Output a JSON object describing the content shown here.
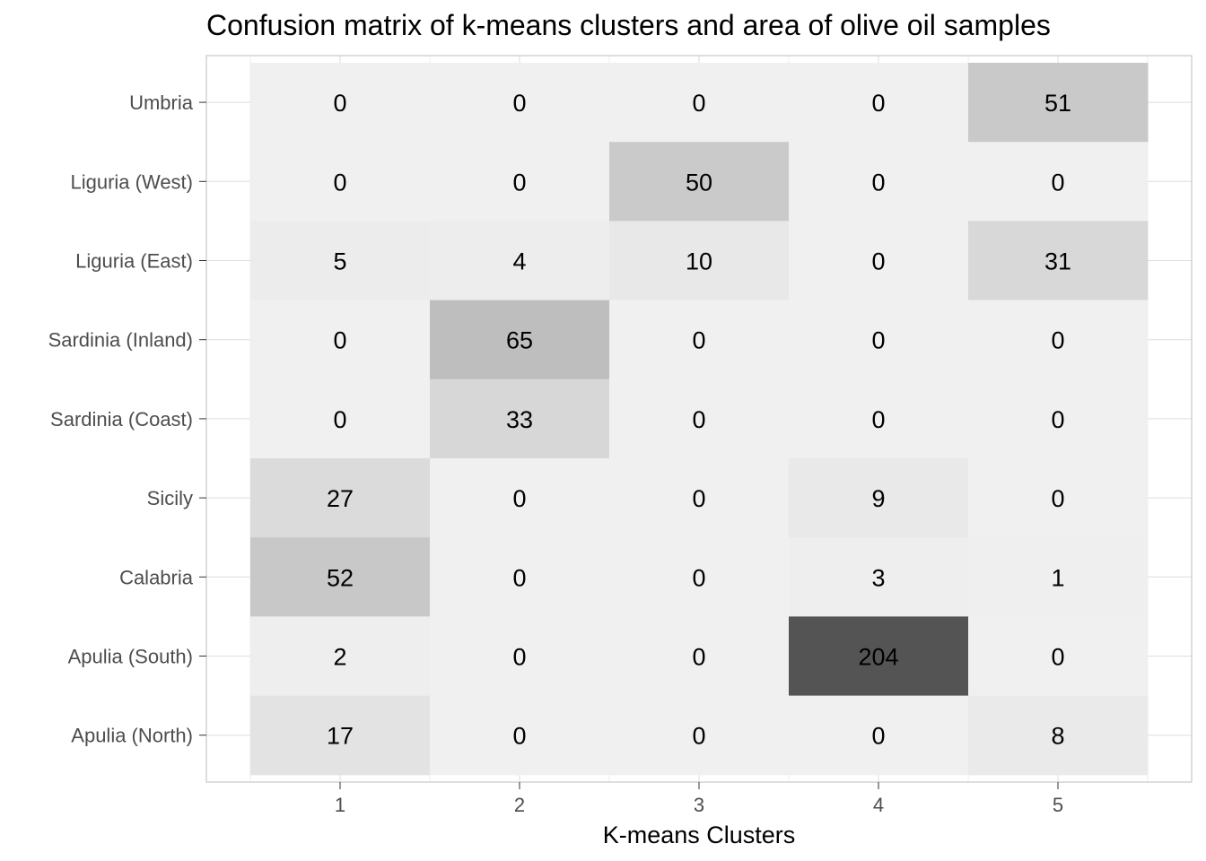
{
  "chart_data": {
    "type": "heatmap",
    "title": "Confusion matrix of k-means clusters and area of olive oil samples",
    "xlabel": "K-means Clusters",
    "ylabel": "",
    "x_categories": [
      "1",
      "2",
      "3",
      "4",
      "5"
    ],
    "y_categories": [
      "Umbria",
      "Liguria (West)",
      "Liguria (East)",
      "Sardinia (Inland)",
      "Sardinia (Coast)",
      "Sicily",
      "Calabria",
      "Apulia (South)",
      "Apulia (North)"
    ],
    "values": [
      [
        0,
        0,
        0,
        0,
        51
      ],
      [
        0,
        0,
        50,
        0,
        0
      ],
      [
        5,
        4,
        10,
        0,
        31
      ],
      [
        0,
        65,
        0,
        0,
        0
      ],
      [
        0,
        33,
        0,
        0,
        0
      ],
      [
        27,
        0,
        0,
        9,
        0
      ],
      [
        52,
        0,
        0,
        3,
        1
      ],
      [
        2,
        0,
        0,
        204,
        0
      ],
      [
        17,
        0,
        0,
        0,
        8
      ]
    ],
    "color_scale": {
      "low": "#f0f0f0",
      "high": "#545454",
      "min": 0,
      "max": 204
    },
    "grid": true,
    "legend": "none"
  }
}
